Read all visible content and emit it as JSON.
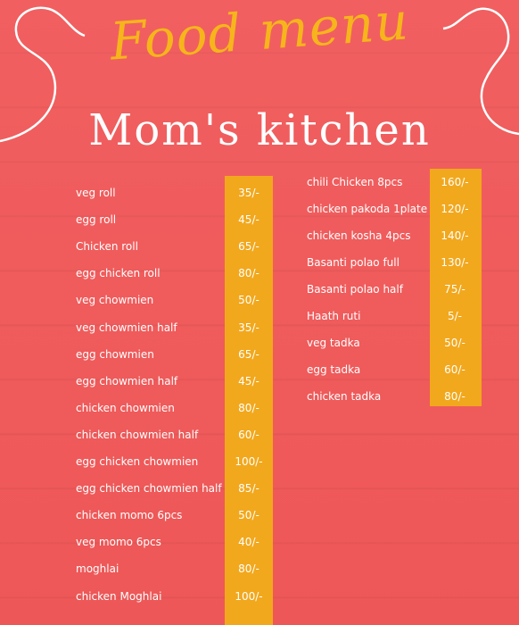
{
  "header": {
    "script_title": "Food menu",
    "title": "Mom's kitchen"
  },
  "colors": {
    "background": "#ef5a5c",
    "price_band": "#f2a81d",
    "script_title": "#f5b51b",
    "text": "#ffffff"
  },
  "menu_left": [
    {
      "name": "veg roll",
      "price": "35/-"
    },
    {
      "name": "egg roll",
      "price": "45/-"
    },
    {
      "name": "Chicken roll",
      "price": "65/-"
    },
    {
      "name": "egg chicken roll",
      "price": "80/-"
    },
    {
      "name": "veg chowmien",
      "price": "50/-"
    },
    {
      "name": "veg chowmien half",
      "price": "35/-"
    },
    {
      "name": "egg chowmien",
      "price": "65/-"
    },
    {
      "name": "egg chowmien half",
      "price": "45/-"
    },
    {
      "name": "chicken chowmien",
      "price": "80/-"
    },
    {
      "name": "chicken chowmien half",
      "price": "60/-"
    },
    {
      "name": "egg chicken chowmien",
      "price": "100/-"
    },
    {
      "name": "egg chicken chowmien half",
      "price": "85/-"
    },
    {
      "name": "chicken momo 6pcs",
      "price": "50/-"
    },
    {
      "name": "veg momo 6pcs",
      "price": "40/-"
    },
    {
      "name": "moghlai",
      "price": "80/-"
    },
    {
      "name": "chicken Moghlai",
      "price": "100/-"
    }
  ],
  "menu_right": [
    {
      "name": "chili Chicken 8pcs",
      "price": "160/-"
    },
    {
      "name": "chicken pakoda 1plate",
      "price": "120/-"
    },
    {
      "name": "chicken kosha 4pcs",
      "price": "140/-"
    },
    {
      "name": "Basanti polao full",
      "price": "130/-"
    },
    {
      "name": "Basanti polao half",
      "price": "75/-"
    },
    {
      "name": "Haath ruti",
      "price": "5/-"
    },
    {
      "name": "veg tadka",
      "price": "50/-"
    },
    {
      "name": "egg tadka",
      "price": "60/-"
    },
    {
      "name": "chicken tadka",
      "price": "80/-"
    }
  ]
}
